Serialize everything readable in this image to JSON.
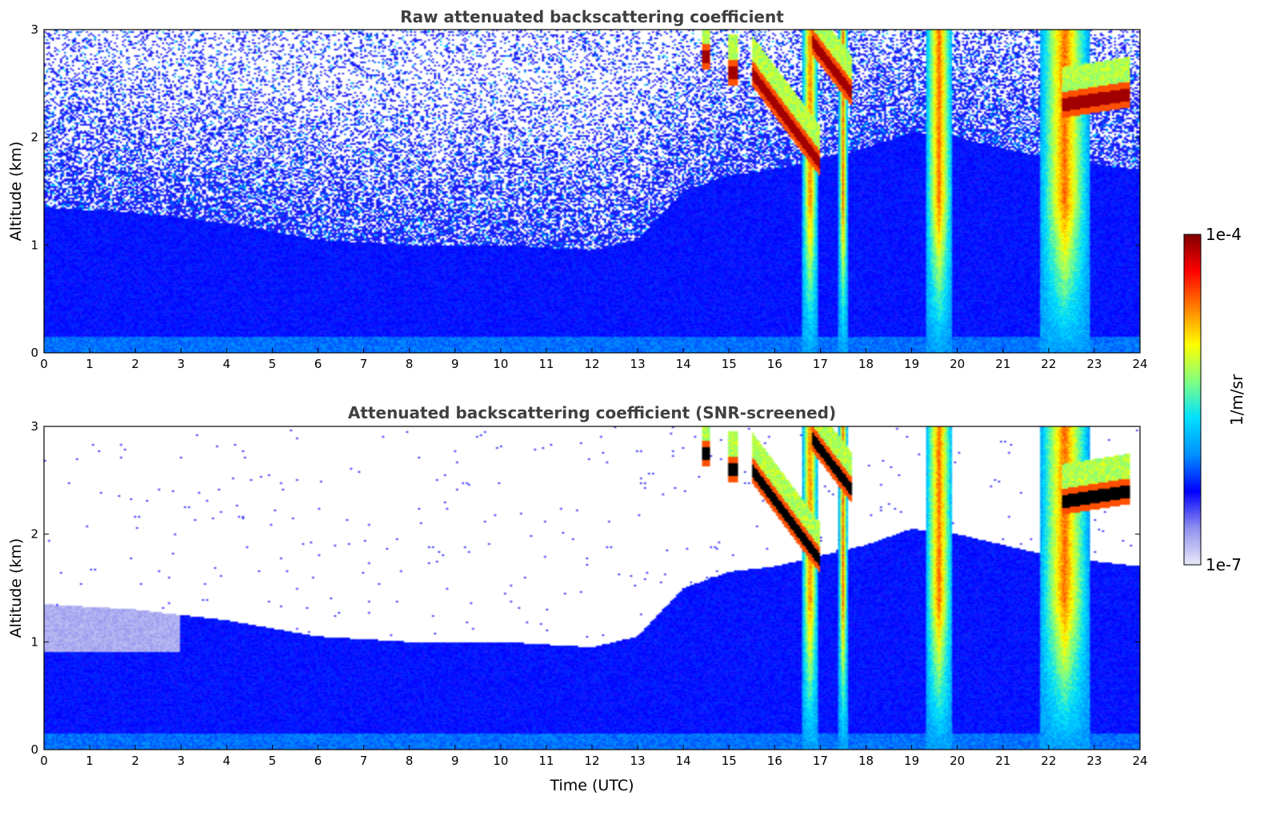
{
  "chart_data": [
    {
      "type": "heatmap",
      "id": "raw",
      "title": "Raw attenuated backscattering coefficient",
      "xlabel": "",
      "ylabel": "Altitude (km)",
      "xlim": [
        0,
        24
      ],
      "ylim": [
        0,
        3
      ],
      "xticks": [
        "0",
        "1",
        "2",
        "3",
        "4",
        "5",
        "6",
        "7",
        "8",
        "9",
        "10",
        "11",
        "12",
        "13",
        "14",
        "15",
        "16",
        "17",
        "18",
        "19",
        "20",
        "21",
        "22",
        "23",
        "24"
      ],
      "yticks": [
        "0",
        "1",
        "2",
        "3"
      ],
      "screened": false,
      "features": {
        "boundary_layer_top_km": [
          [
            0,
            1.35
          ],
          [
            2,
            1.3
          ],
          [
            4,
            1.2
          ],
          [
            6,
            1.05
          ],
          [
            8,
            1.0
          ],
          [
            10,
            1.0
          ],
          [
            12,
            0.95
          ],
          [
            13,
            1.05
          ],
          [
            14,
            1.5
          ],
          [
            15,
            1.65
          ],
          [
            16,
            1.7
          ],
          [
            17,
            1.8
          ],
          [
            18,
            1.9
          ],
          [
            19,
            2.05
          ],
          [
            20,
            2.0
          ],
          [
            21,
            1.9
          ],
          [
            22,
            1.8
          ],
          [
            23,
            1.75
          ],
          [
            24,
            1.7
          ]
        ],
        "precipitation_shafts_utc": [
          [
            16.6,
            16.95
          ],
          [
            17.4,
            17.6
          ],
          [
            19.3,
            19.9
          ],
          [
            21.8,
            22.9
          ]
        ],
        "cloud_base_segments": [
          {
            "x": [
              15.5,
              17.0
            ],
            "y_km": [
              2.6,
              1.75
            ]
          },
          {
            "x": [
              16.8,
              17.7
            ],
            "y_km": [
              2.9,
              2.4
            ]
          },
          {
            "x": [
              22.3,
              23.8
            ],
            "y_km": [
              2.3,
              2.4
            ]
          },
          {
            "x": [
              14.4,
              14.6
            ],
            "y_km": [
              2.75,
              2.75
            ]
          },
          {
            "x": [
              15.0,
              15.2
            ],
            "y_km": [
              2.6,
              2.6
            ]
          }
        ]
      }
    },
    {
      "type": "heatmap",
      "id": "screened",
      "title": "Attenuated backscattering coefficient (SNR-screened)",
      "xlabel": "Time (UTC)",
      "ylabel": "Altitude (km)",
      "xlim": [
        0,
        24
      ],
      "ylim": [
        0,
        3
      ],
      "xticks": [
        "0",
        "1",
        "2",
        "3",
        "4",
        "5",
        "6",
        "7",
        "8",
        "9",
        "10",
        "11",
        "12",
        "13",
        "14",
        "15",
        "16",
        "17",
        "18",
        "19",
        "20",
        "21",
        "22",
        "23",
        "24"
      ],
      "yticks": [
        "0",
        "1",
        "2",
        "3"
      ],
      "screened": true
    }
  ],
  "colorbar": {
    "label": "1/m/sr",
    "max_label": "1e-4",
    "min_label": "1e-7",
    "scale": "log",
    "colormap": "jet",
    "colors": [
      "#e8e8f8",
      "#9090ee",
      "#0000ff",
      "#0090ff",
      "#00e0ff",
      "#80ff80",
      "#ffff00",
      "#ff8000",
      "#ff0000",
      "#800000"
    ]
  }
}
